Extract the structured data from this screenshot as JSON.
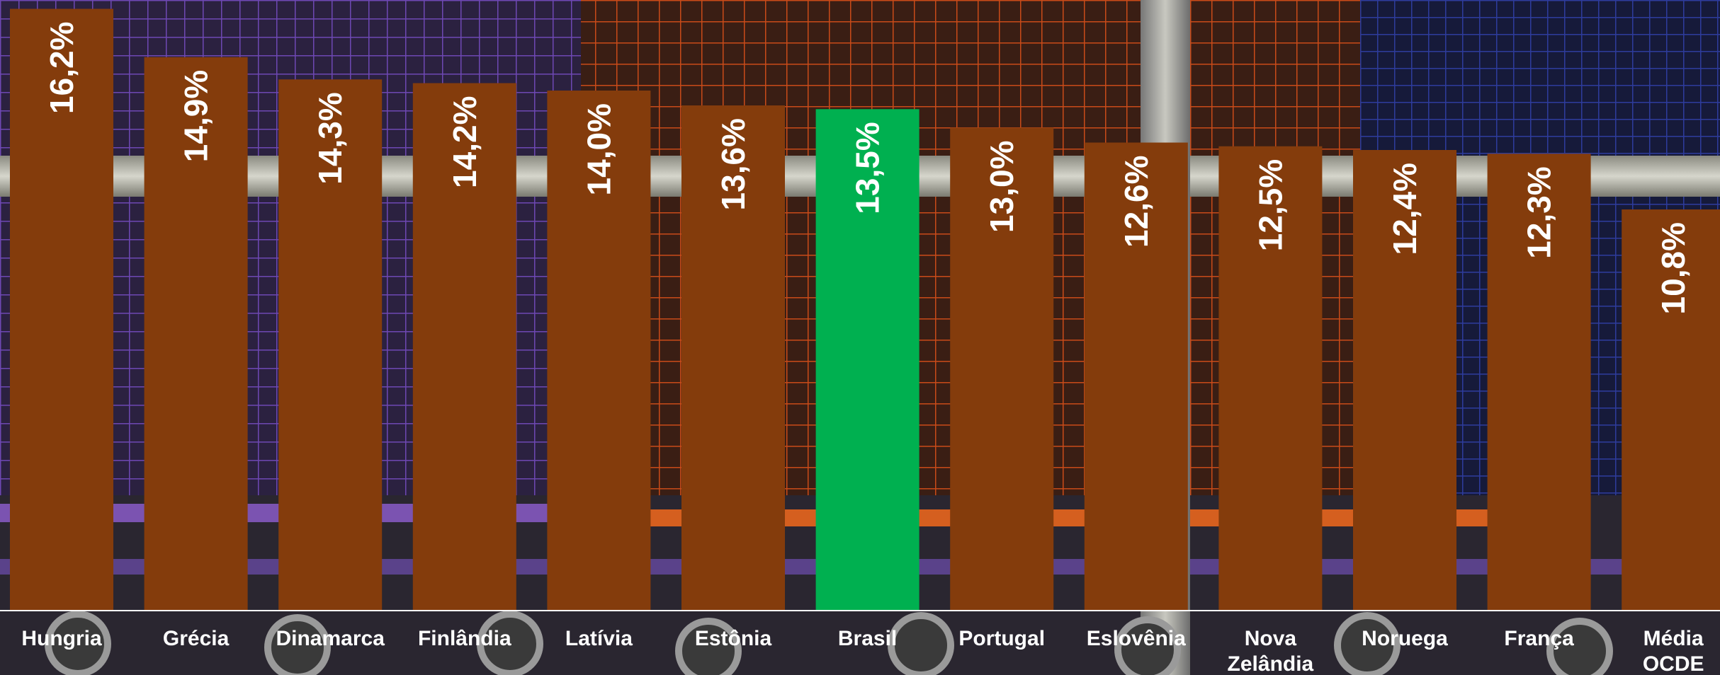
{
  "chart_data": {
    "type": "bar",
    "categories": [
      "Hungria",
      "Grécia",
      "Dinamarca",
      "Finlândia",
      "Latívia",
      "Estônia",
      "Brasil",
      "Portugal",
      "Eslovênia",
      "Nova Zelândia",
      "Noruega",
      "França",
      "Média OCDE"
    ],
    "values": [
      16.2,
      14.9,
      14.3,
      14.2,
      14.0,
      13.6,
      13.5,
      13.0,
      12.6,
      12.5,
      12.4,
      12.3,
      10.8
    ],
    "value_labels": [
      "16,2%",
      "14,9%",
      "14,3%",
      "14,2%",
      "14,0%",
      "13,6%",
      "13,5%",
      "13,0%",
      "12,6%",
      "12,5%",
      "12,4%",
      "12,3%",
      "10,8%"
    ],
    "highlight_index": 6,
    "title": "",
    "xlabel": "",
    "ylabel": "",
    "grid": false,
    "legend": "none",
    "colors": {
      "bar": "#843c0c",
      "highlight": "#00b050",
      "label": "#ffffff",
      "baseline": "#ffffff"
    },
    "background": "photo of shopping carts (orange, purple, blue)"
  }
}
